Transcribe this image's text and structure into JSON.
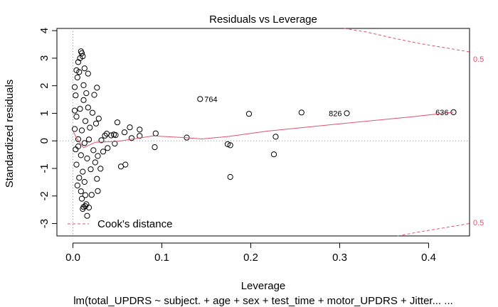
{
  "chart_data": {
    "type": "scatter",
    "title": "Residuals vs Leverage",
    "xlabel": "Leverage",
    "ylabel": "Standardized residuals",
    "subtitle": "lm(total_UPDRS ~ subject. + age + sex + test_time + motor_UPDRS + Jitter... ...",
    "xlim": [
      -0.018,
      0.446
    ],
    "ylim": [
      -3.45,
      4.08
    ],
    "xticks": [
      "0.0",
      "0.1",
      "0.2",
      "0.3",
      "0.4"
    ],
    "yticks": [
      "-3",
      "-2",
      "-1",
      "0",
      "1",
      "2",
      "3",
      "4"
    ],
    "grid": false,
    "legend": {
      "label": "Cook's distance",
      "placement": "bottom-left"
    },
    "cook_contour_label": "0.5",
    "labeled_points": [
      {
        "x": 0.143,
        "y": 1.52,
        "label": "764"
      },
      {
        "x": 0.308,
        "y": 1.0,
        "label": "826"
      },
      {
        "x": 0.428,
        "y": 1.04,
        "label": "636"
      }
    ],
    "points": [
      {
        "x": 0.198,
        "y": 0.98
      },
      {
        "x": 0.257,
        "y": 1.03
      },
      {
        "x": 0.228,
        "y": 0.15
      },
      {
        "x": 0.226,
        "y": -0.49
      },
      {
        "x": 0.174,
        "y": -0.12
      },
      {
        "x": 0.177,
        "y": -0.16
      },
      {
        "x": 0.177,
        "y": -1.31
      },
      {
        "x": 0.128,
        "y": 0.12
      },
      {
        "x": 0.093,
        "y": 0.27
      },
      {
        "x": 0.092,
        "y": -0.23
      },
      {
        "x": 0.075,
        "y": 0.41
      },
      {
        "x": 0.075,
        "y": 0.18
      },
      {
        "x": 0.066,
        "y": 0.1
      },
      {
        "x": 0.064,
        "y": 0.49
      },
      {
        "x": 0.058,
        "y": 0.31
      },
      {
        "x": 0.059,
        "y": -0.86
      },
      {
        "x": 0.054,
        "y": -0.93
      },
      {
        "x": 0.05,
        "y": 0.67
      },
      {
        "x": 0.046,
        "y": 0.23
      },
      {
        "x": 0.048,
        "y": 0.21
      },
      {
        "x": 0.047,
        "y": -0.1
      },
      {
        "x": 0.043,
        "y": 0.2
      },
      {
        "x": 0.039,
        "y": -0.26
      },
      {
        "x": 0.038,
        "y": 0.26
      },
      {
        "x": 0.036,
        "y": 0.19
      },
      {
        "x": 0.034,
        "y": -0.39
      },
      {
        "x": 0.032,
        "y": 0.02
      },
      {
        "x": 0.031,
        "y": -1.01
      },
      {
        "x": 0.029,
        "y": 0.81
      },
      {
        "x": 0.028,
        "y": -0.55
      },
      {
        "x": 0.027,
        "y": 1.93
      },
      {
        "x": 0.028,
        "y": -1.82
      },
      {
        "x": 0.027,
        "y": -1.38
      },
      {
        "x": 0.026,
        "y": 0.63
      },
      {
        "x": 0.025,
        "y": -0.78
      },
      {
        "x": 0.024,
        "y": 1.67
      },
      {
        "x": 0.023,
        "y": -0.34
      },
      {
        "x": 0.022,
        "y": 1.02
      },
      {
        "x": 0.02,
        "y": -1.03
      },
      {
        "x": 0.019,
        "y": 0.48
      },
      {
        "x": 0.021,
        "y": -1.96
      },
      {
        "x": 0.017,
        "y": 2.44
      },
      {
        "x": 0.016,
        "y": -2.72
      },
      {
        "x": 0.018,
        "y": -2.42
      },
      {
        "x": 0.015,
        "y": -2.3
      },
      {
        "x": 0.014,
        "y": -2.37
      },
      {
        "x": 0.012,
        "y": -2.4
      },
      {
        "x": 0.011,
        "y": -2.47
      },
      {
        "x": 0.009,
        "y": 3.25
      },
      {
        "x": 0.01,
        "y": 3.18
      },
      {
        "x": 0.011,
        "y": 3.07
      },
      {
        "x": 0.008,
        "y": 3.0
      },
      {
        "x": 0.006,
        "y": 2.86
      },
      {
        "x": 0.007,
        "y": 2.5
      },
      {
        "x": 0.004,
        "y": 2.56
      },
      {
        "x": 0.013,
        "y": 2.63
      },
      {
        "x": 0.005,
        "y": 2.3
      },
      {
        "x": 0.002,
        "y": 1.95
      },
      {
        "x": 0.003,
        "y": 1.65
      },
      {
        "x": 0.015,
        "y": 1.73
      },
      {
        "x": 0.012,
        "y": 1.48
      },
      {
        "x": 0.008,
        "y": 1.16
      },
      {
        "x": 0.004,
        "y": 0.88
      },
      {
        "x": 0.014,
        "y": 0.72
      },
      {
        "x": 0.002,
        "y": 0.43
      },
      {
        "x": 0.01,
        "y": 0.38
      },
      {
        "x": 0.006,
        "y": 0.06
      },
      {
        "x": 0.013,
        "y": -0.08
      },
      {
        "x": 0.003,
        "y": -0.31
      },
      {
        "x": 0.009,
        "y": -0.52
      },
      {
        "x": 0.016,
        "y": -0.64
      },
      {
        "x": 0.004,
        "y": -0.86
      },
      {
        "x": 0.011,
        "y": -1.12
      },
      {
        "x": 0.007,
        "y": -1.34
      },
      {
        "x": 0.013,
        "y": -1.49
      },
      {
        "x": 0.005,
        "y": -1.62
      },
      {
        "x": 0.009,
        "y": -1.83
      },
      {
        "x": 0.014,
        "y": -1.97
      },
      {
        "x": 0.002,
        "y": 1.1
      },
      {
        "x": 0.017,
        "y": 1.21
      },
      {
        "x": 0.006,
        "y": -0.2
      },
      {
        "x": 0.018,
        "y": 0.05
      },
      {
        "x": 0.012,
        "y": 2.02
      },
      {
        "x": 0.01,
        "y": -2.1
      }
    ],
    "cook_line": [
      {
        "x": 0.0,
        "y": 0.36
      },
      {
        "x": 0.005,
        "y": 0.05
      },
      {
        "x": 0.012,
        "y": -0.25
      },
      {
        "x": 0.025,
        "y": -0.05
      },
      {
        "x": 0.05,
        "y": -0.02
      },
      {
        "x": 0.09,
        "y": 0.18
      },
      {
        "x": 0.12,
        "y": 0.13
      },
      {
        "x": 0.145,
        "y": 0.07
      },
      {
        "x": 0.175,
        "y": 0.16
      },
      {
        "x": 0.22,
        "y": 0.36
      },
      {
        "x": 0.3,
        "y": 0.62
      },
      {
        "x": 0.38,
        "y": 0.87
      },
      {
        "x": 0.428,
        "y": 1.04
      }
    ]
  },
  "cook_upper_curve": [
    {
      "x": 0.305,
      "y": 4.08
    },
    {
      "x": 0.33,
      "y": 3.95
    },
    {
      "x": 0.36,
      "y": 3.73
    },
    {
      "x": 0.39,
      "y": 3.53
    },
    {
      "x": 0.42,
      "y": 3.37
    },
    {
      "x": 0.446,
      "y": 3.23
    }
  ],
  "cook_lower_curve": [
    {
      "x": 0.365,
      "y": -3.45
    },
    {
      "x": 0.39,
      "y": -3.3
    },
    {
      "x": 0.42,
      "y": -3.14
    },
    {
      "x": 0.446,
      "y": -3.0
    }
  ],
  "colors": {
    "cook": "#df536b",
    "points": "#000000",
    "reference": "#9a9a9a"
  }
}
